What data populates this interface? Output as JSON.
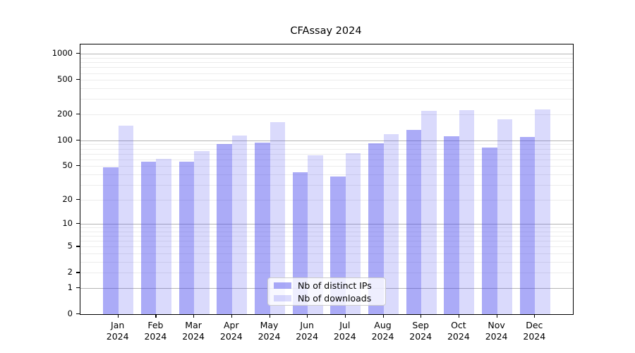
{
  "title": "CFAssay 2024",
  "chart_data": {
    "type": "bar",
    "title": "CFAssay 2024",
    "scale": "log1p",
    "xlabel": "",
    "ylabel": "",
    "ylim": [
      0,
      1283
    ],
    "grid": "horizontal",
    "legend_position": "lower-center-inside",
    "yticks": [
      0,
      1,
      2,
      5,
      10,
      20,
      50,
      100,
      200,
      500,
      1000
    ],
    "gridlines_major": [
      1,
      10,
      100,
      1000
    ],
    "gridlines_minor": [
      2,
      3,
      4,
      5,
      6,
      7,
      8,
      9,
      20,
      30,
      40,
      50,
      60,
      70,
      80,
      90,
      200,
      300,
      400,
      500,
      600,
      700,
      800,
      900
    ],
    "categories": [
      {
        "month": "Jan",
        "year": "2024"
      },
      {
        "month": "Feb",
        "year": "2024"
      },
      {
        "month": "Mar",
        "year": "2024"
      },
      {
        "month": "Apr",
        "year": "2024"
      },
      {
        "month": "May",
        "year": "2024"
      },
      {
        "month": "Jun",
        "year": "2024"
      },
      {
        "month": "Jul",
        "year": "2024"
      },
      {
        "month": "Aug",
        "year": "2024"
      },
      {
        "month": "Sep",
        "year": "2024"
      },
      {
        "month": "Oct",
        "year": "2024"
      },
      {
        "month": "Nov",
        "year": "2024"
      },
      {
        "month": "Dec",
        "year": "2024"
      }
    ],
    "series": [
      {
        "key": "distinct-ips",
        "name": "Nb of distinct IPs",
        "color": "rgba(68, 68, 238, 0.45)",
        "values": [
          48,
          56,
          56,
          90,
          94,
          42,
          38,
          92,
          132,
          112,
          82,
          109
        ]
      },
      {
        "key": "downloads",
        "name": "Nb of downloads",
        "color": "rgba(68, 68, 238, 0.2)",
        "values": [
          148,
          61,
          75,
          113,
          162,
          67,
          71,
          119,
          219,
          222,
          174,
          230
        ]
      }
    ]
  },
  "legend": {
    "entries": [
      {
        "label": "Nb of distinct IPs"
      },
      {
        "label": "Nb of downloads"
      }
    ]
  }
}
